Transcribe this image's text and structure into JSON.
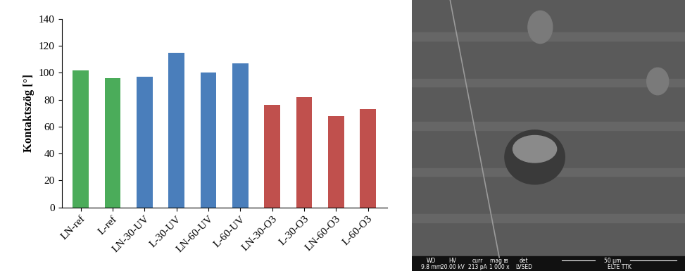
{
  "chart_data": {
    "type": "bar",
    "y_label": "Kontaktszög [°]",
    "categories": [
      "LN-ref",
      "L-ref",
      "LN-30-UV",
      "L-30-UV",
      "LN-60-UV",
      "L-60-UV",
      "LN-30-O3",
      "L-30-O3",
      "LN-60-O3",
      "L-60-O3"
    ],
    "values": [
      102,
      96,
      97,
      115,
      100,
      107,
      76,
      82,
      68,
      73
    ],
    "colors": [
      "#4bac5a",
      "#4bac5a",
      "#4a7ebb",
      "#4a7ebb",
      "#4a7ebb",
      "#4a7ebb",
      "#c0504d",
      "#c0504d",
      "#c0504d",
      "#c0504d"
    ],
    "ylim": [
      0,
      140
    ],
    "yticks": [
      0,
      20,
      40,
      60,
      80,
      100,
      120,
      140
    ],
    "grid": false
  },
  "micrograph": {
    "info_bar": {
      "headers": [
        "WD",
        "HV",
        "curr",
        "mag ⊞",
        "det"
      ],
      "values": [
        "9.8 mm",
        "20.00 kV",
        "213 pA",
        "1 000 x",
        "LVSED"
      ],
      "scale_bar": "50 µm",
      "institution": "ELTE TTK"
    }
  }
}
